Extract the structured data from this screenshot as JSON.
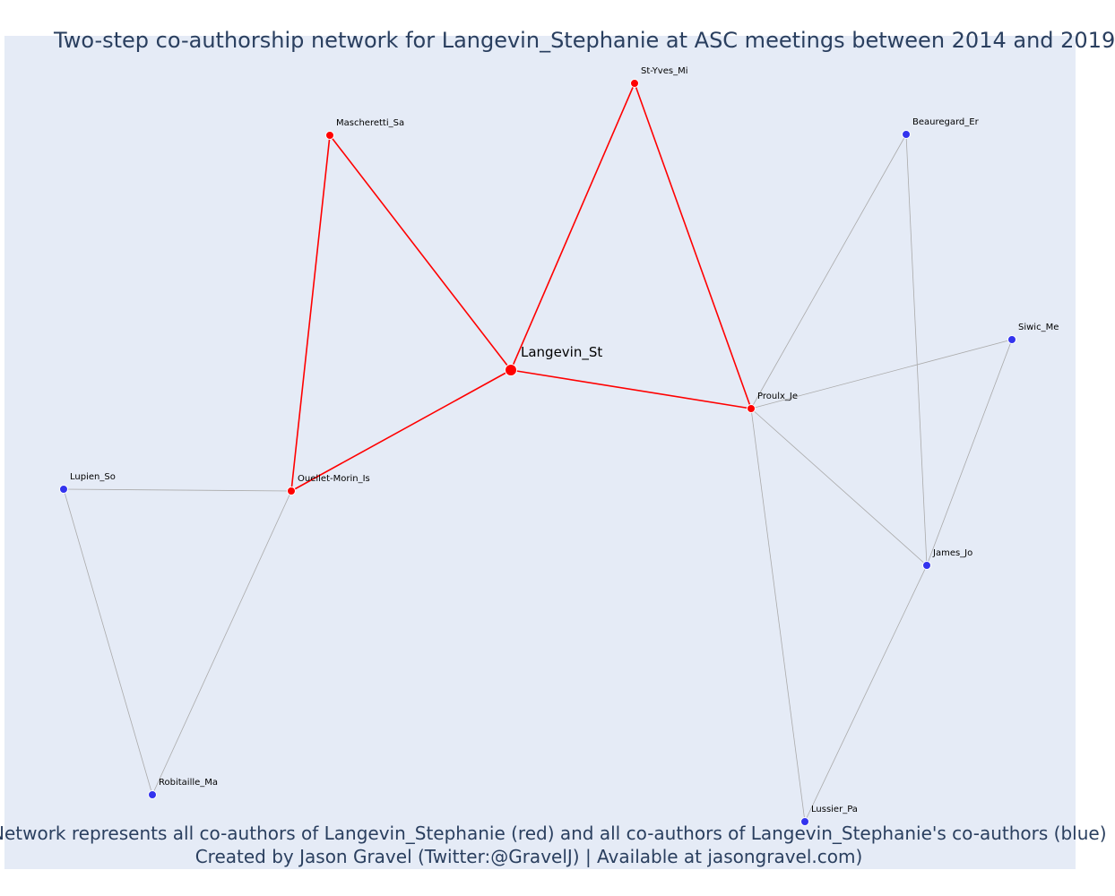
{
  "title": "Two-step co-authorship network for Langevin_Stephanie at ASC meetings between 2014 and 2019",
  "caption": {
    "line1": "Network represents all co-authors of Langevin_Stephanie (red) and all co-authors of Langevin_Stephanie's co-authors (blue)",
    "line2": "Created by Jason Gravel (Twitter:@GravelJ) | Available at jasongravel.com)"
  },
  "colors": {
    "background": "#e5ebf6",
    "first_step": "#ff0000",
    "second_step": "#3333ee",
    "second_step_edge": "#aaaaaa",
    "title_text": "#2a3f5f"
  },
  "chart_data": {
    "type": "network",
    "focal_node": "Langevin_St",
    "nodes": [
      {
        "id": "Langevin_St",
        "group": "focal"
      },
      {
        "id": "St-Yves_Mi",
        "group": "coauthor"
      },
      {
        "id": "Mascheretti_Sa",
        "group": "coauthor"
      },
      {
        "id": "Proulx_Je",
        "group": "coauthor"
      },
      {
        "id": "Ouellet-Morin_Is",
        "group": "coauthor"
      },
      {
        "id": "Beauregard_Er",
        "group": "second"
      },
      {
        "id": "Siwic_Me",
        "group": "second"
      },
      {
        "id": "James_Jo",
        "group": "second"
      },
      {
        "id": "Lussier_Pa",
        "group": "second"
      },
      {
        "id": "Lupien_So",
        "group": "second"
      },
      {
        "id": "Robitaille_Ma",
        "group": "second"
      }
    ],
    "edges": [
      [
        "Langevin_St",
        "St-Yves_Mi",
        "first"
      ],
      [
        "Langevin_St",
        "Mascheretti_Sa",
        "first"
      ],
      [
        "Langevin_St",
        "Proulx_Je",
        "first"
      ],
      [
        "Langevin_St",
        "Ouellet-Morin_Is",
        "first"
      ],
      [
        "St-Yves_Mi",
        "Proulx_Je",
        "first"
      ],
      [
        "Mascheretti_Sa",
        "Ouellet-Morin_Is",
        "first"
      ],
      [
        "Proulx_Je",
        "Beauregard_Er",
        "second"
      ],
      [
        "Proulx_Je",
        "Siwic_Me",
        "second"
      ],
      [
        "Proulx_Je",
        "James_Jo",
        "second"
      ],
      [
        "Proulx_Je",
        "Lussier_Pa",
        "second"
      ],
      [
        "Beauregard_Er",
        "James_Jo",
        "second"
      ],
      [
        "Siwic_Me",
        "James_Jo",
        "second"
      ],
      [
        "James_Jo",
        "Lussier_Pa",
        "second"
      ],
      [
        "Ouellet-Morin_Is",
        "Lupien_So",
        "second"
      ],
      [
        "Ouellet-Morin_Is",
        "Robitaille_Ma",
        "second"
      ],
      [
        "Lupien_So",
        "Robitaille_Ma",
        "second"
      ]
    ]
  }
}
